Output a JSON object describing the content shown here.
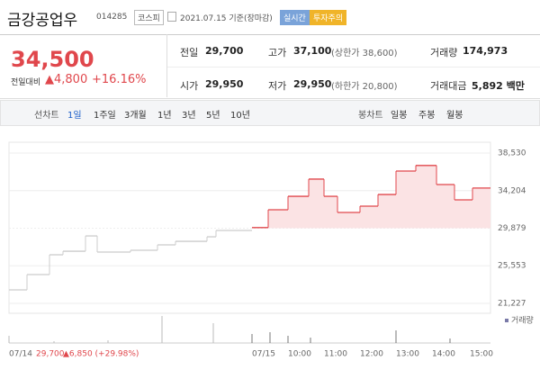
{
  "header": {
    "title": "금강공업우",
    "code": "014285",
    "market": "코스피",
    "date": "2021.07.15 기준(장마감)",
    "badge_realtime": "실시간",
    "badge_warning": "투자주의"
  },
  "price": {
    "current": "34,500",
    "change_label": "전일대비",
    "change": "▲4,800",
    "change_pct": "+16.16%"
  },
  "summary": [
    [
      {
        "label": "전일",
        "value": "29,700"
      },
      {
        "label": "고가",
        "value": "37,100",
        "note": "(상한가 38,600)"
      },
      {
        "label": "거래량",
        "value": "174,973"
      }
    ],
    [
      {
        "label": "시가",
        "value": "29,950"
      },
      {
        "label": "저가",
        "value": "29,950",
        "note": "(하한가 20,800)"
      },
      {
        "label": "거래대금",
        "value": "5,892 백만"
      }
    ]
  ],
  "tabs": {
    "line_label": "선차트",
    "line": [
      "1일",
      "1주일",
      "3개월",
      "1년",
      "3년",
      "5년",
      "10년"
    ],
    "candle_label": "봉차트",
    "candle": [
      "일봉",
      "주봉",
      "월봉"
    ]
  },
  "chart_data": {
    "type": "line",
    "ylim": [
      21227,
      38530
    ],
    "yticks": [
      {
        "value": 38530,
        "label": "38,530"
      },
      {
        "value": 34204,
        "label": "34,204"
      },
      {
        "value": 29879,
        "label": "29,879"
      },
      {
        "value": 25553,
        "label": "25,553"
      },
      {
        "value": 21227,
        "label": "21,227"
      }
    ],
    "series": [
      {
        "color": "#cccccc",
        "values": [
          22780,
          24540,
          26820,
          27230,
          28990,
          27130,
          27340,
          27960,
          28370,
          28890,
          29620
        ]
      },
      {
        "color": "#e0474c",
        "values": [
          29950,
          32000,
          33550,
          35530,
          33550,
          31690,
          32420,
          33760,
          36460,
          37100,
          34900,
          33140,
          34500
        ]
      }
    ],
    "x_labels": [
      "07/14",
      "07/15",
      "10:00",
      "11:00",
      "12:00",
      "13:00",
      "14:00",
      "15:00"
    ],
    "prev_close": "29,700",
    "prev_change": "▲6,850 (+29.98%)",
    "volume_label": "거래량",
    "volume": [
      8,
      2,
      3,
      30,
      22,
      10,
      12,
      8,
      6,
      14,
      5
    ]
  }
}
